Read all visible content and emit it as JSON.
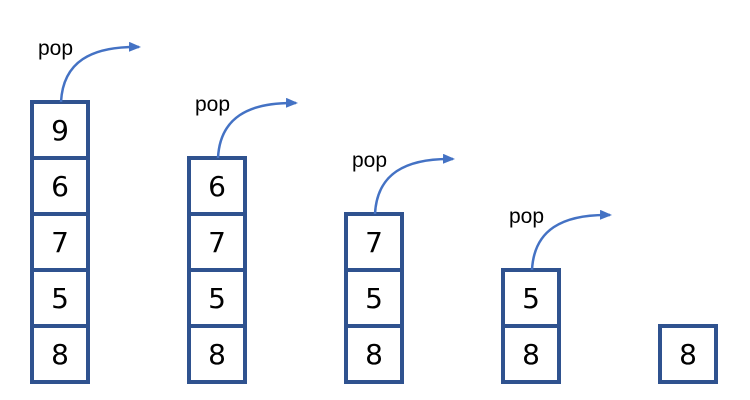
{
  "pop_label": "pop",
  "colors": {
    "box_border": "#2f528f",
    "arrow": "#4472c4",
    "text": "#000000",
    "background": "#ffffff"
  },
  "stacks": [
    {
      "values": [
        "9",
        "6",
        "7",
        "5",
        "8"
      ],
      "has_pop": true
    },
    {
      "values": [
        "6",
        "7",
        "5",
        "8"
      ],
      "has_pop": true
    },
    {
      "values": [
        "7",
        "5",
        "8"
      ],
      "has_pop": true
    },
    {
      "values": [
        "5",
        "8"
      ],
      "has_pop": true
    },
    {
      "values": [
        "8"
      ],
      "has_pop": false
    }
  ]
}
